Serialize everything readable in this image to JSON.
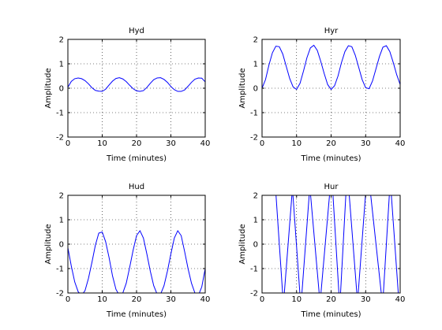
{
  "chart_data": [
    {
      "type": "line",
      "title": "Hyd",
      "xlabel": "Time (minutes)",
      "ylabel": "Amplitude",
      "xlim": [
        0,
        40
      ],
      "ylim": [
        -2,
        2
      ],
      "xticks": [
        0,
        10,
        20,
        30,
        40
      ],
      "yticks": [
        -2,
        -1,
        0,
        1,
        2
      ],
      "grid": true,
      "series": [
        {
          "color": "#0000ff",
          "x": [
            0,
            1,
            2,
            3,
            4,
            5,
            6,
            7,
            8,
            9,
            10,
            11,
            12,
            13,
            14,
            15,
            16,
            17,
            18,
            19,
            20,
            21,
            22,
            23,
            24,
            25,
            26,
            27,
            28,
            29,
            30,
            31,
            32,
            33,
            34,
            35,
            36,
            37,
            38,
            39,
            40
          ],
          "values": [
            0.04,
            0.28,
            0.39,
            0.42,
            0.39,
            0.31,
            0.18,
            0.02,
            -0.09,
            -0.12,
            -0.13,
            -0.04,
            0.13,
            0.29,
            0.4,
            0.43,
            0.38,
            0.27,
            0.12,
            -0.02,
            -0.11,
            -0.13,
            -0.1,
            0.03,
            0.2,
            0.35,
            0.42,
            0.43,
            0.36,
            0.24,
            0.07,
            -0.06,
            -0.13,
            -0.13,
            -0.07,
            0.08,
            0.24,
            0.37,
            0.42,
            0.41,
            0.26
          ]
        }
      ]
    },
    {
      "type": "line",
      "title": "Hyr",
      "xlabel": "Time (minutes)",
      "ylabel": "Amplitude",
      "xlim": [
        0,
        40
      ],
      "ylim": [
        -2,
        2
      ],
      "xticks": [
        0,
        10,
        20,
        30,
        40
      ],
      "yticks": [
        -2,
        -1,
        0,
        1,
        2
      ],
      "grid": true,
      "series": [
        {
          "color": "#0000ff",
          "x": [
            0,
            1,
            2,
            3,
            4,
            5,
            6,
            7,
            8,
            9,
            10,
            11,
            12,
            13,
            14,
            15,
            16,
            17,
            18,
            19,
            20,
            21,
            22,
            23,
            24,
            25,
            26,
            27,
            28,
            29,
            30,
            31,
            32,
            33,
            34,
            35,
            36,
            37,
            38,
            39,
            40
          ],
          "values": [
            0.0,
            0.35,
            0.95,
            1.45,
            1.72,
            1.7,
            1.4,
            0.9,
            0.4,
            0.05,
            -0.05,
            0.2,
            0.7,
            1.25,
            1.65,
            1.76,
            1.55,
            1.1,
            0.6,
            0.15,
            -0.05,
            0.1,
            0.5,
            1.05,
            1.5,
            1.74,
            1.7,
            1.35,
            0.85,
            0.35,
            0.02,
            -0.02,
            0.3,
            0.8,
            1.3,
            1.68,
            1.74,
            1.5,
            1.05,
            0.55,
            0.15
          ]
        }
      ]
    },
    {
      "type": "line",
      "title": "Hud",
      "xlabel": "Time (minutes)",
      "ylabel": "Amplitude",
      "xlim": [
        0,
        40
      ],
      "ylim": [
        -2,
        2
      ],
      "xticks": [
        0,
        10,
        20,
        30,
        40
      ],
      "yticks": [
        -2,
        -1,
        0,
        1,
        2
      ],
      "grid": true,
      "series": [
        {
          "color": "#0000ff",
          "x": [
            0,
            1,
            2,
            3,
            4,
            5,
            6,
            7,
            8,
            9,
            10,
            11,
            12,
            13,
            14,
            15,
            16,
            17,
            18,
            19,
            20,
            21,
            22,
            23,
            24,
            25,
            26,
            27,
            28,
            29,
            30,
            31,
            32,
            33,
            34,
            35,
            36,
            37,
            38,
            39,
            40
          ],
          "values": [
            -0.15,
            -0.9,
            -1.55,
            -1.95,
            -2.1,
            -1.9,
            -1.4,
            -0.75,
            -0.05,
            0.45,
            0.5,
            0.1,
            -0.55,
            -1.3,
            -1.85,
            -2.1,
            -2.0,
            -1.6,
            -0.95,
            -0.25,
            0.35,
            0.55,
            0.25,
            -0.4,
            -1.1,
            -1.7,
            -2.05,
            -2.05,
            -1.7,
            -1.1,
            -0.4,
            0.25,
            0.55,
            0.35,
            -0.3,
            -1.0,
            -1.6,
            -2.0,
            -2.1,
            -1.75,
            -1.0
          ]
        }
      ]
    },
    {
      "type": "line",
      "title": "Hur",
      "xlabel": "Time (minutes)",
      "ylabel": "Amplitude",
      "xlim": [
        0,
        40
      ],
      "ylim": [
        -2,
        2
      ],
      "xticks": [
        0,
        10,
        20,
        30,
        40
      ],
      "yticks": [
        -2,
        -1,
        0,
        1,
        2
      ],
      "grid": true,
      "series": [
        {
          "color": "#0000ff",
          "x": [
            4.0,
            6.0,
            6.4,
            8.7,
            8.9,
            11.0,
            11.5,
            13.7,
            14.0,
            16.6,
            17.0,
            19.6,
            20.5,
            22.3,
            22.7,
            24.3,
            25.2,
            27.5,
            27.8,
            30.0,
            31.4,
            34.6,
            35.1,
            36.9,
            37.4,
            39.5,
            40.0
          ],
          "values": [
            2.1,
            -2.1,
            -2.1,
            2.1,
            2.1,
            -2.1,
            -2.1,
            2.1,
            2.1,
            -2.1,
            -2.1,
            2.1,
            2.1,
            -2.1,
            -2.1,
            2.1,
            2.1,
            -2.1,
            -2.1,
            2.1,
            2.1,
            -2.1,
            -2.1,
            2.1,
            2.1,
            -2.1,
            -2.1
          ]
        }
      ]
    }
  ]
}
